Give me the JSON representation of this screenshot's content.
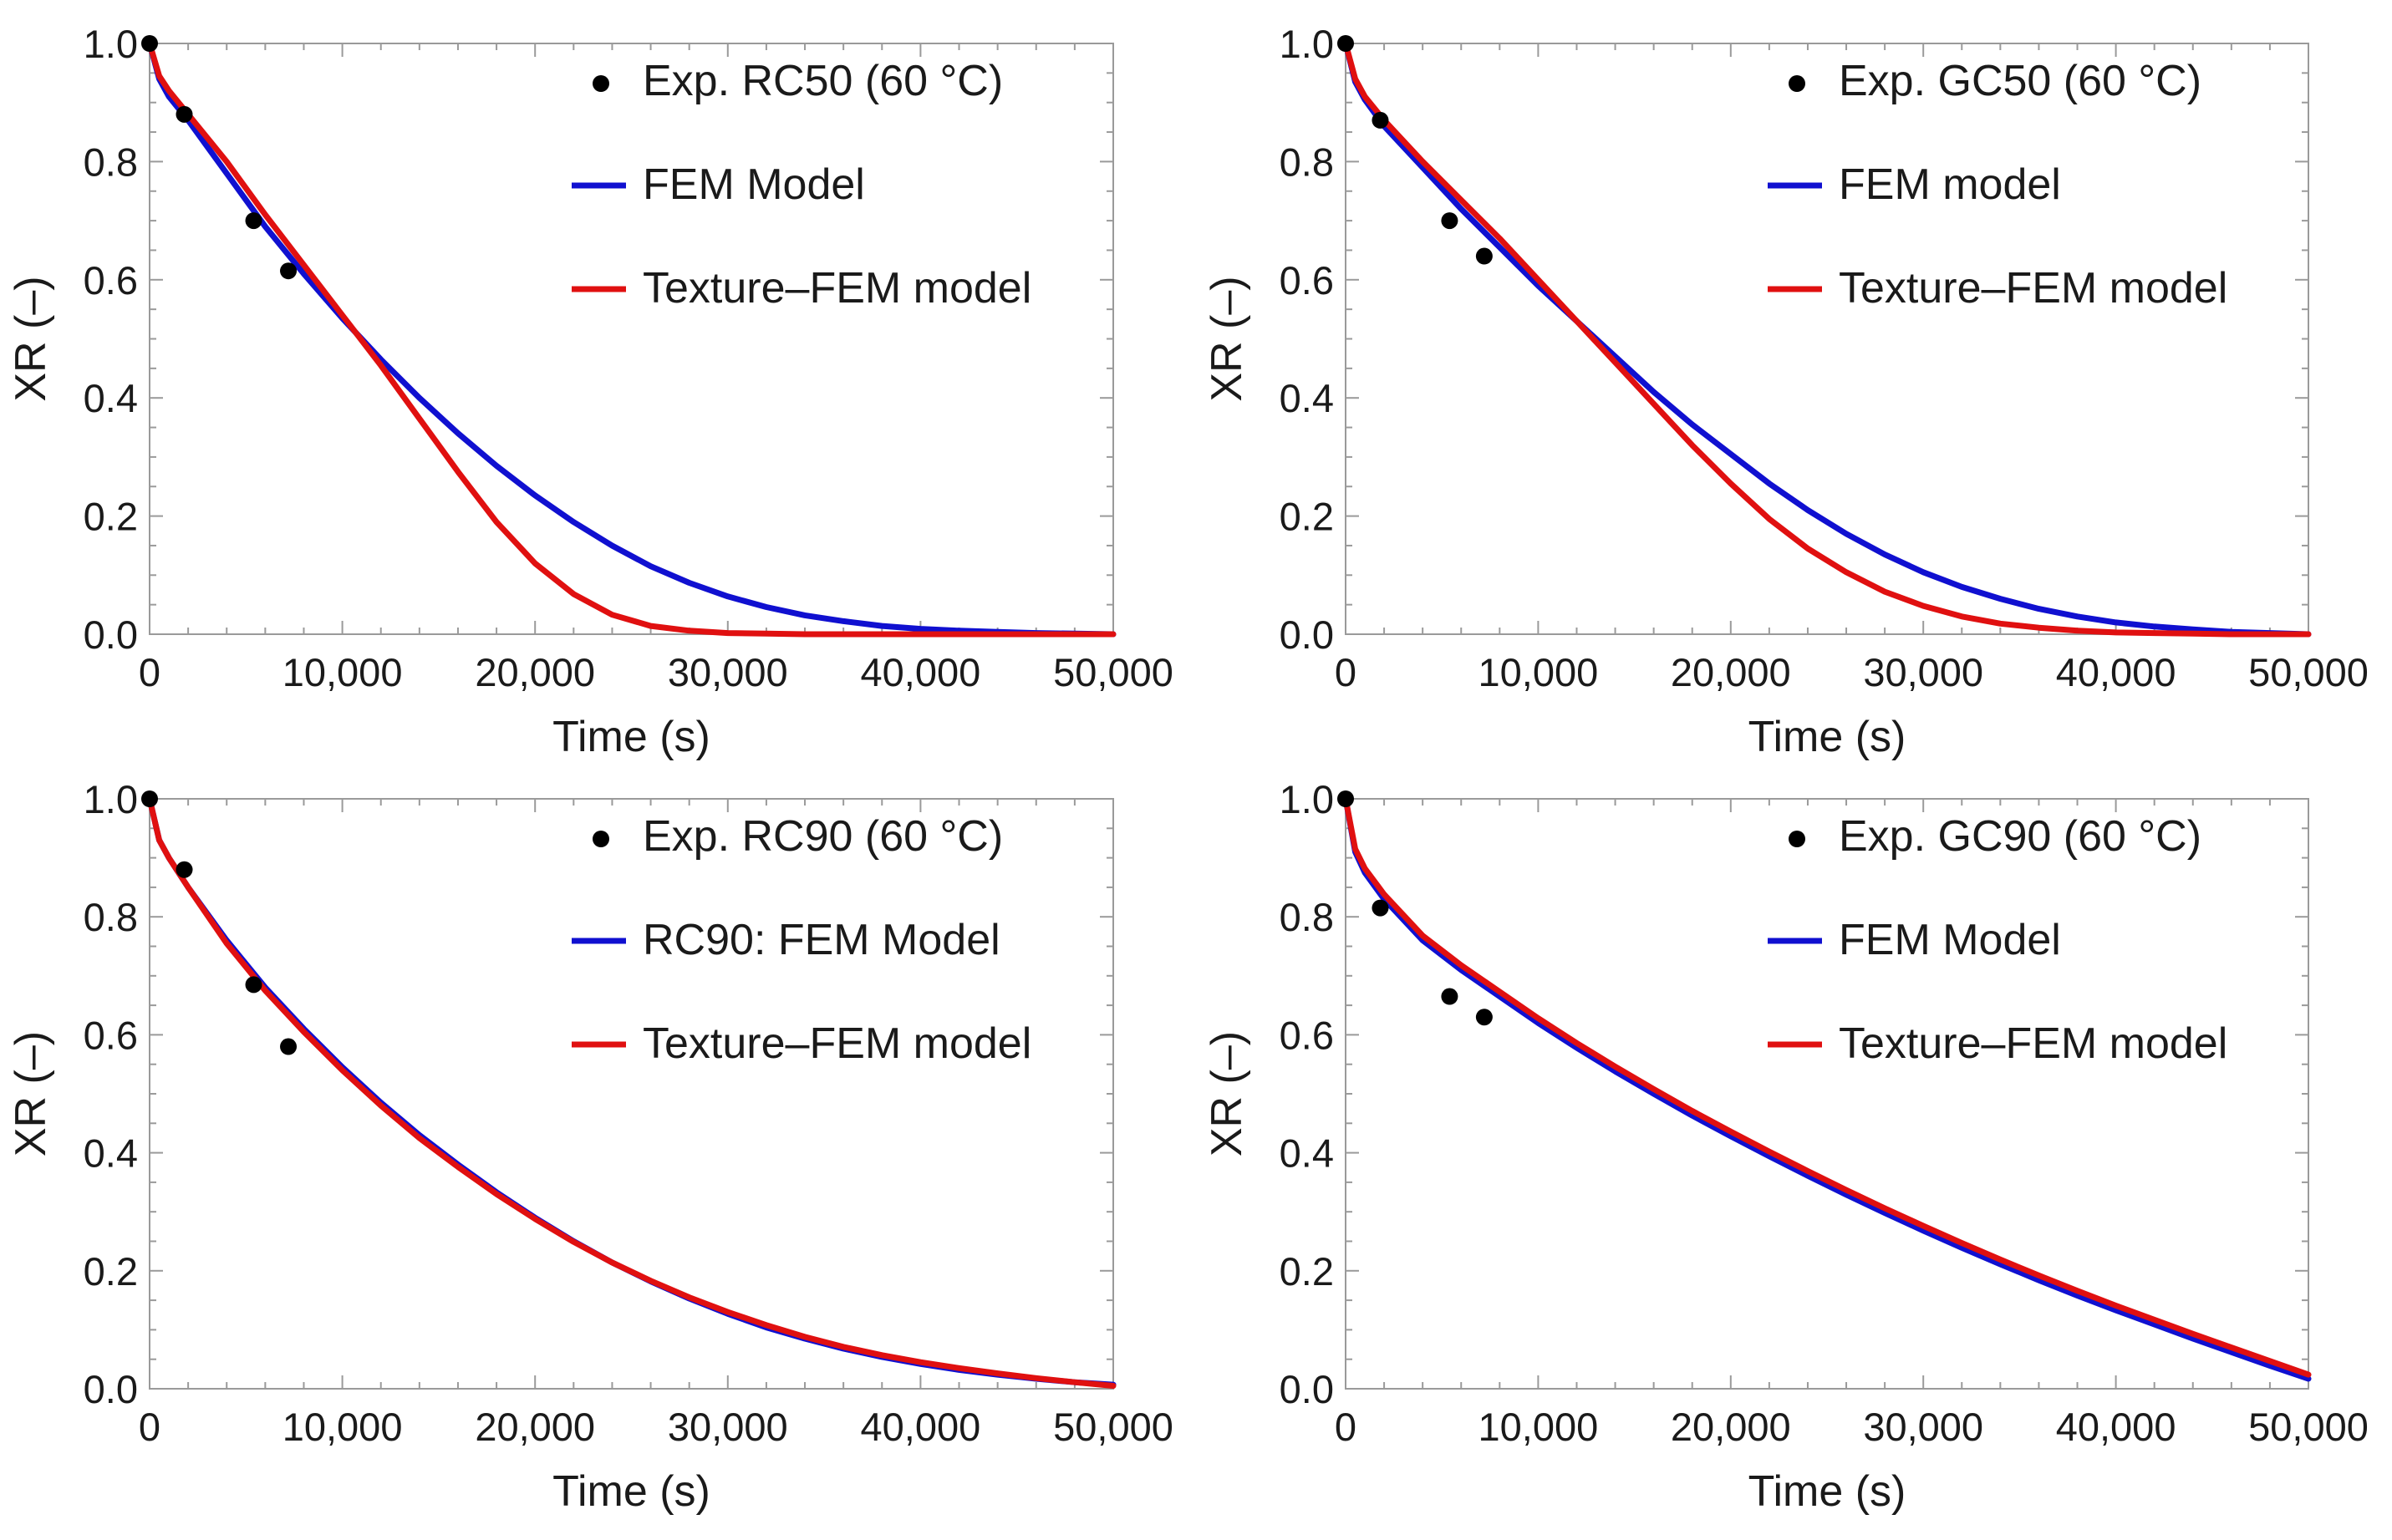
{
  "chart_data": [
    {
      "type": "line",
      "panel": "top-left",
      "title": "",
      "xlabel": "Time (s)",
      "ylabel": "XR (–)",
      "xlim": [
        0,
        50000
      ],
      "ylim": [
        0.0,
        1.0
      ],
      "x_ticks": [
        "0",
        "10,000",
        "20,000",
        "30,000",
        "40,000",
        "50,000"
      ],
      "y_ticks": [
        "0.0",
        "0.2",
        "0.4",
        "0.6",
        "0.8",
        "1.0"
      ],
      "legend_position": "top-right",
      "grid": false,
      "scatter": {
        "name": "Exp. RC50 (60 °C)",
        "color": "#000000",
        "points": [
          [
            0,
            1.0
          ],
          [
            1800,
            0.88
          ],
          [
            5400,
            0.7
          ],
          [
            7200,
            0.615
          ]
        ]
      },
      "series": [
        {
          "name": "FEM Model",
          "color": "#1010d0",
          "x": [
            0,
            500,
            1000,
            2000,
            4000,
            6000,
            8000,
            10000,
            12000,
            14000,
            16000,
            18000,
            20000,
            22000,
            24000,
            26000,
            28000,
            30000,
            32000,
            34000,
            36000,
            38000,
            40000,
            42000,
            44000,
            46000,
            48000,
            50000
          ],
          "values": [
            1.0,
            0.94,
            0.91,
            0.87,
            0.78,
            0.69,
            0.61,
            0.535,
            0.465,
            0.4,
            0.34,
            0.285,
            0.235,
            0.19,
            0.15,
            0.115,
            0.087,
            0.064,
            0.046,
            0.032,
            0.022,
            0.014,
            0.009,
            0.006,
            0.004,
            0.002,
            0.001,
            0.0
          ]
        },
        {
          "name": "Texture–FEM model",
          "color": "#e01010",
          "x": [
            0,
            500,
            1000,
            2000,
            4000,
            6000,
            8000,
            10000,
            12000,
            14000,
            16000,
            18000,
            20000,
            22000,
            24000,
            26000,
            28000,
            30000,
            32000,
            34000,
            36000,
            38000,
            40000,
            42000,
            44000,
            46000,
            48000,
            50000
          ],
          "values": [
            1.0,
            0.945,
            0.92,
            0.88,
            0.8,
            0.71,
            0.625,
            0.54,
            0.455,
            0.365,
            0.275,
            0.19,
            0.12,
            0.068,
            0.033,
            0.014,
            0.006,
            0.002,
            0.001,
            0.0,
            0.0,
            0.0,
            0.0,
            0.0,
            0.0,
            0.0,
            0.0,
            0.0
          ]
        }
      ]
    },
    {
      "type": "line",
      "panel": "top-right",
      "title": "",
      "xlabel": "Time (s)",
      "ylabel": "XR (–)",
      "xlim": [
        0,
        50000
      ],
      "ylim": [
        0.0,
        1.0
      ],
      "x_ticks": [
        "0",
        "10,000",
        "20,000",
        "30,000",
        "40,000",
        "50,000"
      ],
      "y_ticks": [
        "0.0",
        "0.2",
        "0.4",
        "0.6",
        "0.8",
        "1.0"
      ],
      "legend_position": "top-right",
      "grid": false,
      "scatter": {
        "name": "Exp. GC50 (60 °C)",
        "color": "#000000",
        "points": [
          [
            0,
            1.0
          ],
          [
            1800,
            0.87
          ],
          [
            5400,
            0.7
          ],
          [
            7200,
            0.64
          ]
        ]
      },
      "series": [
        {
          "name": "FEM model",
          "color": "#1010d0",
          "x": [
            0,
            500,
            1000,
            2000,
            4000,
            6000,
            8000,
            10000,
            12000,
            14000,
            16000,
            18000,
            20000,
            22000,
            24000,
            26000,
            28000,
            30000,
            32000,
            34000,
            36000,
            38000,
            40000,
            42000,
            44000,
            46000,
            48000,
            50000
          ],
          "values": [
            1.0,
            0.935,
            0.905,
            0.86,
            0.79,
            0.72,
            0.655,
            0.59,
            0.53,
            0.47,
            0.41,
            0.355,
            0.305,
            0.255,
            0.21,
            0.17,
            0.135,
            0.105,
            0.08,
            0.06,
            0.043,
            0.03,
            0.02,
            0.013,
            0.008,
            0.004,
            0.002,
            0.0
          ]
        },
        {
          "name": "Texture–FEM model",
          "color": "#e01010",
          "x": [
            0,
            500,
            1000,
            2000,
            4000,
            6000,
            8000,
            10000,
            12000,
            14000,
            16000,
            18000,
            20000,
            22000,
            24000,
            26000,
            28000,
            30000,
            32000,
            34000,
            36000,
            38000,
            40000,
            42000,
            44000,
            46000,
            48000,
            50000
          ],
          "values": [
            1.0,
            0.94,
            0.91,
            0.87,
            0.8,
            0.735,
            0.67,
            0.6,
            0.53,
            0.46,
            0.39,
            0.32,
            0.255,
            0.195,
            0.145,
            0.105,
            0.072,
            0.048,
            0.03,
            0.018,
            0.011,
            0.006,
            0.003,
            0.002,
            0.001,
            0.0,
            0.0,
            0.0
          ]
        }
      ]
    },
    {
      "type": "line",
      "panel": "bottom-left",
      "title": "",
      "xlabel": "Time (s)",
      "ylabel": "XR (–)",
      "xlim": [
        0,
        50000
      ],
      "ylim": [
        0.0,
        1.0
      ],
      "x_ticks": [
        "0",
        "10,000",
        "20,000",
        "30,000",
        "40,000",
        "50,000"
      ],
      "y_ticks": [
        "0.0",
        "0.2",
        "0.4",
        "0.6",
        "0.8",
        "1.0"
      ],
      "legend_position": "top-right",
      "grid": false,
      "scatter": {
        "name": "Exp. RC90 (60 °C)",
        "color": "#000000",
        "points": [
          [
            0,
            1.0
          ],
          [
            1800,
            0.88
          ],
          [
            5400,
            0.685
          ],
          [
            7200,
            0.58
          ]
        ]
      },
      "series": [
        {
          "name": "RC90: FEM Model",
          "color": "#1010d0",
          "x": [
            0,
            500,
            1000,
            2000,
            4000,
            6000,
            8000,
            10000,
            12000,
            14000,
            16000,
            18000,
            20000,
            22000,
            24000,
            26000,
            28000,
            30000,
            32000,
            34000,
            36000,
            38000,
            40000,
            42000,
            44000,
            46000,
            48000,
            50000
          ],
          "values": [
            1.0,
            0.93,
            0.9,
            0.85,
            0.76,
            0.68,
            0.61,
            0.545,
            0.485,
            0.43,
            0.38,
            0.333,
            0.29,
            0.25,
            0.214,
            0.182,
            0.153,
            0.127,
            0.104,
            0.085,
            0.068,
            0.054,
            0.042,
            0.032,
            0.024,
            0.017,
            0.011,
            0.007
          ]
        },
        {
          "name": "Texture–FEM model",
          "color": "#e01010",
          "x": [
            0,
            500,
            1000,
            2000,
            4000,
            6000,
            8000,
            10000,
            12000,
            14000,
            16000,
            18000,
            20000,
            22000,
            24000,
            26000,
            28000,
            30000,
            32000,
            34000,
            36000,
            38000,
            40000,
            42000,
            44000,
            46000,
            48000,
            50000
          ],
          "values": [
            1.0,
            0.93,
            0.9,
            0.85,
            0.755,
            0.675,
            0.605,
            0.54,
            0.48,
            0.425,
            0.376,
            0.33,
            0.288,
            0.249,
            0.214,
            0.183,
            0.155,
            0.13,
            0.108,
            0.088,
            0.071,
            0.057,
            0.045,
            0.035,
            0.026,
            0.018,
            0.011,
            0.005
          ]
        }
      ]
    },
    {
      "type": "line",
      "panel": "bottom-right",
      "title": "",
      "xlabel": "Time (s)",
      "ylabel": "XR (–)",
      "xlim": [
        0,
        50000
      ],
      "ylim": [
        0.0,
        1.0
      ],
      "x_ticks": [
        "0",
        "10,000",
        "20,000",
        "30,000",
        "40,000",
        "50,000"
      ],
      "y_ticks": [
        "0.0",
        "0.2",
        "0.4",
        "0.6",
        "0.8",
        "1.0"
      ],
      "legend_position": "top-right",
      "grid": false,
      "scatter": {
        "name": "Exp. GC90 (60 °C)",
        "color": "#000000",
        "points": [
          [
            0,
            1.0
          ],
          [
            1800,
            0.815
          ],
          [
            5400,
            0.665
          ],
          [
            7200,
            0.63
          ]
        ]
      },
      "series": [
        {
          "name": "FEM Model",
          "color": "#1010d0",
          "x": [
            0,
            500,
            1000,
            2000,
            4000,
            6000,
            8000,
            10000,
            12000,
            14000,
            16000,
            18000,
            20000,
            22000,
            24000,
            26000,
            28000,
            30000,
            32000,
            34000,
            36000,
            38000,
            40000,
            42000,
            44000,
            46000,
            48000,
            50000
          ],
          "values": [
            1.0,
            0.91,
            0.875,
            0.83,
            0.76,
            0.71,
            0.665,
            0.62,
            0.578,
            0.538,
            0.5,
            0.463,
            0.428,
            0.394,
            0.361,
            0.329,
            0.298,
            0.268,
            0.239,
            0.211,
            0.184,
            0.158,
            0.133,
            0.109,
            0.085,
            0.062,
            0.039,
            0.017
          ]
        },
        {
          "name": "Texture–FEM model",
          "color": "#e01010",
          "x": [
            0,
            500,
            1000,
            2000,
            4000,
            6000,
            8000,
            10000,
            12000,
            14000,
            16000,
            18000,
            20000,
            22000,
            24000,
            26000,
            28000,
            30000,
            32000,
            34000,
            36000,
            38000,
            40000,
            42000,
            44000,
            46000,
            48000,
            50000
          ],
          "values": [
            1.0,
            0.915,
            0.882,
            0.838,
            0.768,
            0.718,
            0.673,
            0.628,
            0.586,
            0.546,
            0.508,
            0.471,
            0.436,
            0.402,
            0.369,
            0.337,
            0.306,
            0.276,
            0.247,
            0.219,
            0.192,
            0.166,
            0.141,
            0.117,
            0.093,
            0.07,
            0.047,
            0.024
          ]
        }
      ]
    }
  ]
}
